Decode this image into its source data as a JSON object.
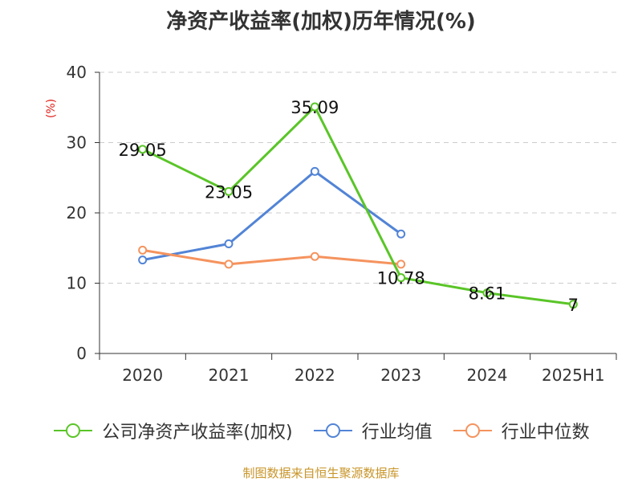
{
  "chart_data": {
    "type": "line",
    "title": "净资产收益率(加权)历年情况(%)",
    "ylabel": "(%)",
    "categories": [
      "2020",
      "2021",
      "2022",
      "2023",
      "2024",
      "2025H1"
    ],
    "ylim": [
      0,
      40
    ],
    "yticks": [
      0,
      10,
      20,
      30,
      40
    ],
    "grid": true,
    "legend_position": "bottom",
    "series": [
      {
        "name": "公司净资产收益率(加权)",
        "color": "#5ac528",
        "values": [
          29.05,
          23.05,
          35.09,
          10.78,
          8.61,
          7
        ],
        "labels": [
          "29.05",
          "23.05",
          "35.09",
          "10.78",
          "8.61",
          "7"
        ]
      },
      {
        "name": "行业均值",
        "color": "#5284d6",
        "values": [
          13.3,
          15.6,
          25.9,
          17.0,
          null,
          null
        ]
      },
      {
        "name": "行业中位数",
        "color": "#f5935e",
        "values": [
          14.7,
          12.7,
          13.8,
          12.7,
          null,
          null
        ]
      }
    ]
  },
  "source": "制图数据来自恒生聚源数据库"
}
